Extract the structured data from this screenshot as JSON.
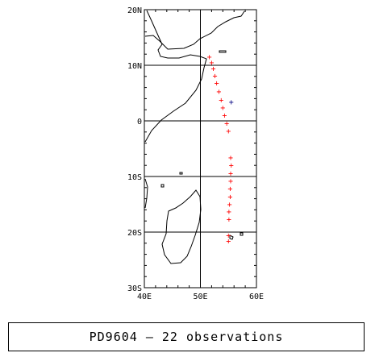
{
  "map": {
    "lon_range": [
      40,
      60
    ],
    "lat_range": [
      -30,
      20
    ],
    "lon_ticks": [
      "40E",
      "50E",
      "60E"
    ],
    "lat_ticks": [
      "20N",
      "10N",
      "0",
      "10S",
      "20S",
      "30S"
    ],
    "grid": true,
    "marker": "+",
    "colors": {
      "observed": "#ff0000",
      "first": "#000080",
      "coast": "#000000"
    }
  },
  "chart_data": {
    "type": "scatter",
    "title": "",
    "xlabel": "",
    "ylabel": "",
    "xlim": [
      40,
      60
    ],
    "ylim": [
      -30,
      20
    ],
    "series": [
      {
        "x": [
          55.5,
          51.6,
          52.0,
          52.3,
          52.6,
          52.9,
          53.3,
          53.7,
          54.0,
          54.3,
          54.7,
          55.0,
          55.4,
          55.5,
          55.4,
          55.4,
          55.3,
          55.3,
          55.2,
          55.1,
          55.1,
          55.0,
          55.0
        ],
        "y": [
          3.4,
          11.5,
          10.5,
          9.4,
          8.1,
          6.8,
          5.3,
          3.8,
          2.4,
          1.0,
          -0.4,
          -1.8,
          -6.6,
          -8.0,
          -9.4,
          -10.8,
          -12.2,
          -13.6,
          -15.0,
          -16.3,
          -17.7,
          -20.6,
          -21.6
        ]
      }
    ]
  },
  "caption": "PD9604 — 22 observations"
}
